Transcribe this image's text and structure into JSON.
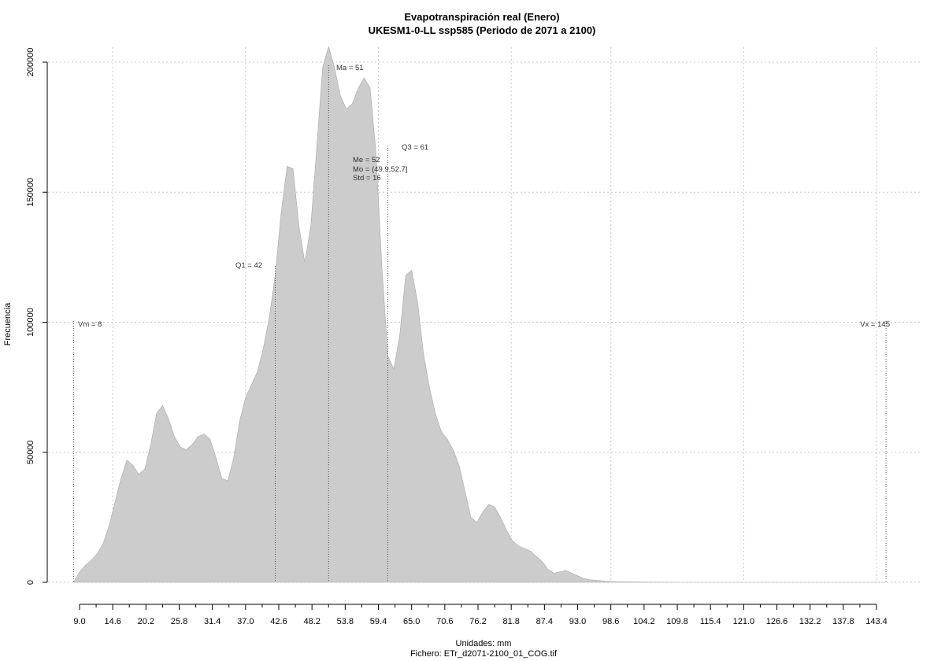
{
  "chart_data": {
    "type": "area",
    "title": "Evapotranspiración real (Enero)",
    "subtitle": "UKESM1-0-LL ssp585 (Periodo de 2071 a 2100)",
    "xlabel": "Unidades: mm",
    "footer": "Fichero: ETr_d2071-2100_01_COG.tif",
    "ylabel": "Frecuencia",
    "xlim": [
      7.2,
      146.3
    ],
    "ylim": [
      0,
      210000
    ],
    "fill_color": "#cccccc",
    "grid": true,
    "x_ticks": [
      "9.0",
      "14.6",
      "20.2",
      "25.8",
      "31.4",
      "37.0",
      "42.6",
      "48.2",
      "53.8",
      "59.4",
      "65.0",
      "70.6",
      "76.2",
      "81.8",
      "87.4",
      "93.0",
      "98.6",
      "104.2",
      "109.8",
      "115.4",
      "121.0",
      "126.6",
      "132.2",
      "137.8",
      "143.4"
    ],
    "y_ticks": [
      "0",
      "50000",
      "100000",
      "150000",
      "200000"
    ],
    "x": [
      8,
      9,
      10,
      11,
      12,
      13,
      14,
      15,
      16,
      17,
      18,
      19,
      20,
      21,
      22,
      23,
      24,
      25,
      26,
      27,
      28,
      29,
      30,
      31,
      32,
      33,
      34,
      35,
      36,
      37,
      38,
      39,
      40,
      41,
      42,
      43,
      44,
      45,
      46,
      47,
      48,
      49,
      50,
      51,
      52,
      53,
      54,
      55,
      56,
      57,
      58,
      59,
      60,
      61,
      62,
      63,
      64,
      65,
      66,
      67,
      68,
      69,
      70,
      71,
      72,
      73,
      74,
      75,
      76,
      77,
      78,
      79,
      80,
      81,
      82,
      83,
      84,
      85,
      86,
      87,
      88,
      89,
      90,
      91,
      92,
      93,
      94,
      95,
      96,
      97,
      98,
      99,
      100,
      102,
      104,
      106,
      108,
      110,
      115,
      120,
      125,
      130,
      135,
      140,
      145
    ],
    "values": [
      0,
      4000,
      6500,
      8500,
      11000,
      15000,
      22000,
      31000,
      40000,
      47000,
      45000,
      41500,
      43500,
      53000,
      65000,
      68000,
      63000,
      56000,
      52000,
      51000,
      53000,
      56000,
      57000,
      55000,
      48000,
      40000,
      39000,
      48000,
      62000,
      71000,
      76000,
      81000,
      90000,
      102000,
      118000,
      142000,
      160000,
      159000,
      137000,
      123000,
      137000,
      167000,
      198000,
      206000,
      198000,
      187000,
      182000,
      184000,
      190000,
      194000,
      190000,
      165000,
      121000,
      87000,
      82000,
      95000,
      118000,
      120000,
      108000,
      88000,
      75000,
      65000,
      58000,
      55000,
      51000,
      45000,
      35000,
      25000,
      23000,
      27000,
      30000,
      29000,
      25000,
      20000,
      16000,
      14000,
      13000,
      12000,
      10000,
      8000,
      5000,
      3500,
      4000,
      4500,
      3500,
      2500,
      1500,
      1000,
      800,
      600,
      400,
      300,
      200,
      150,
      100,
      50,
      20,
      10,
      0,
      0,
      0,
      0,
      0,
      0,
      0
    ],
    "stats": {
      "vm": {
        "label": "Vm = 8",
        "x": 8
      },
      "q1": {
        "label": "Q1 = 42",
        "x": 42
      },
      "ma": {
        "label": "Ma = 51",
        "x": 51
      },
      "q3": {
        "label": "Q3 = 61",
        "x": 61
      },
      "vx": {
        "label": "Vx = 145",
        "x": 145
      },
      "me": "Me = 52",
      "mo": "Mo = (49.9,52.7]",
      "std": "Std = 16"
    }
  }
}
